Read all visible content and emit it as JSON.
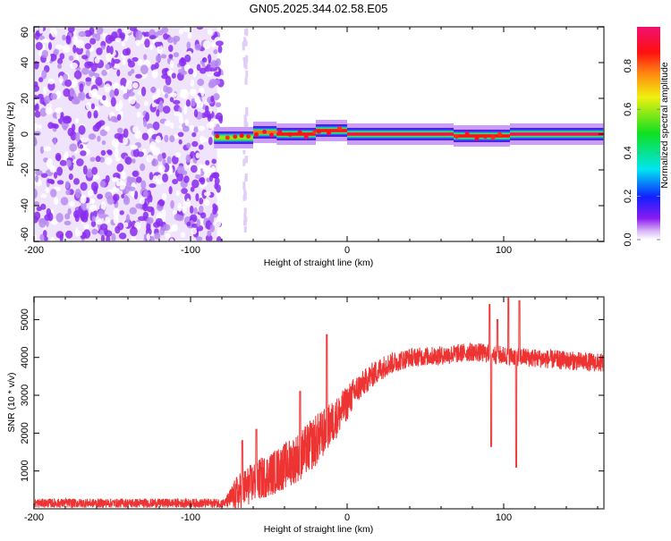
{
  "chart_data": [
    {
      "type": "heatmap",
      "title": "GN05.2025.344.02.58.E05",
      "xlabel": "Height of straight line (km)",
      "ylabel": "Frequency (Hz)",
      "xlim": [
        -200,
        164
      ],
      "ylim": [
        -60,
        60
      ],
      "xticks": [
        "-200",
        "-100",
        "0",
        "100"
      ],
      "xtick_values": [
        -200,
        -100,
        0,
        100
      ],
      "yticks": [
        "-60",
        "-40",
        "-20",
        "0",
        "20",
        "40",
        "60"
      ],
      "ytick_values": [
        -60,
        -40,
        -20,
        0,
        20,
        40,
        60
      ],
      "colorbar": {
        "label": "Normalized spectral amplitude",
        "range": [
          0,
          0.98
        ],
        "ticks": [
          "0.0",
          "0.2",
          "0.4",
          "0.6",
          "0.8"
        ],
        "tick_values": [
          0,
          0.2,
          0.4,
          0.6,
          0.8
        ]
      },
      "noise_region": {
        "x_from": -200,
        "x_to": -83,
        "amplitude": 0.1
      },
      "band_segments": [
        {
          "x_from": -85,
          "x_to": -60,
          "freq": -2,
          "peak": 0.6
        },
        {
          "x_from": -60,
          "x_to": -45,
          "freq": 1,
          "peak": 0.8
        },
        {
          "x_from": -45,
          "x_to": -20,
          "freq": 0,
          "peak": 0.9
        },
        {
          "x_from": -20,
          "x_to": 0,
          "freq": 2,
          "peak": 0.9
        },
        {
          "x_from": 0,
          "x_to": 68,
          "freq": 0,
          "peak": 0.95
        },
        {
          "x_from": 68,
          "x_to": 104,
          "freq": -1,
          "peak": 0.9
        },
        {
          "x_from": 104,
          "x_to": 164,
          "freq": 0,
          "peak": 0.98
        }
      ]
    },
    {
      "type": "line",
      "xlabel": "Height of straight line (km)",
      "ylabel": "SNR (10 * v/v)",
      "xlim": [
        -200,
        164
      ],
      "ylim": [
        0,
        5600
      ],
      "xticks": [
        "-200",
        "-100",
        "0",
        "100"
      ],
      "xtick_values": [
        -200,
        -100,
        0,
        100
      ],
      "yticks": [
        "1000",
        "2000",
        "3000",
        "4000",
        "5000"
      ],
      "ytick_values": [
        1000,
        2000,
        3000,
        4000,
        5000
      ],
      "series": [
        {
          "name": "SNR",
          "color": "#ee3333",
          "trend": [
            [
              -200,
              150
            ],
            [
              -78,
              150
            ],
            [
              -72,
              350
            ],
            [
              -60,
              700
            ],
            [
              -45,
              1000
            ],
            [
              -30,
              1400
            ],
            [
              -15,
              2000
            ],
            [
              -5,
              2500
            ],
            [
              5,
              3100
            ],
            [
              15,
              3500
            ],
            [
              25,
              3800
            ],
            [
              40,
              4000
            ],
            [
              60,
              4050
            ],
            [
              80,
              4150
            ],
            [
              100,
              4050
            ],
            [
              130,
              3950
            ],
            [
              164,
              3850
            ]
          ],
          "noise": [
            [
              -200,
              120
            ],
            [
              -78,
              120
            ],
            [
              -70,
              500
            ],
            [
              -20,
              700
            ],
            [
              10,
              350
            ],
            [
              40,
              250
            ],
            [
              164,
              250
            ]
          ],
          "spikes": [
            [
              -67,
              1800
            ],
            [
              -58,
              2100
            ],
            [
              -30,
              3100
            ],
            [
              -13,
              4600
            ],
            [
              91,
              5400
            ],
            [
              92,
              1650
            ],
            [
              96,
              5000
            ],
            [
              103,
              5600
            ],
            [
              108,
              1100
            ],
            [
              110,
              5500
            ]
          ]
        }
      ]
    }
  ]
}
